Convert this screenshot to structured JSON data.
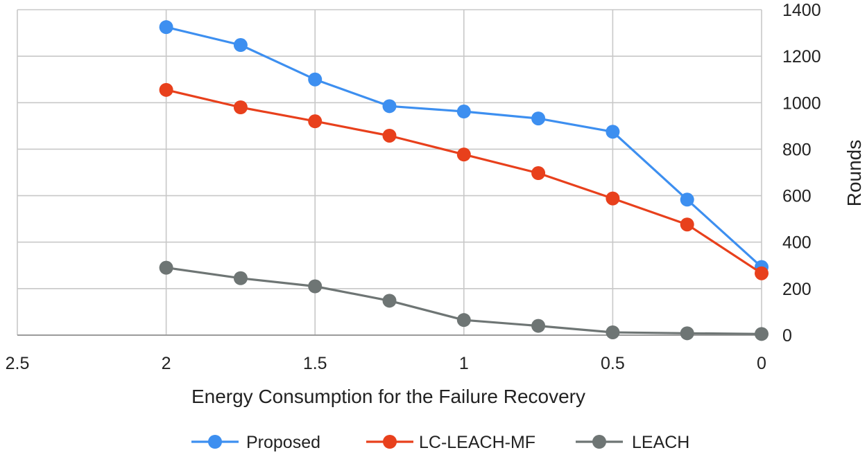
{
  "chart_data": {
    "type": "line",
    "xlabel": "Energy Consumption for the Failure Recovery",
    "ylabel": "Rounds",
    "x_reversed": true,
    "xlim": [
      2.5,
      0
    ],
    "ylim": [
      0,
      1400
    ],
    "x_ticks": [
      "2.5",
      "2",
      "1.5",
      "1",
      "0.5",
      "0"
    ],
    "y_ticks": [
      "0",
      "200",
      "400",
      "600",
      "800",
      "1000",
      "1200",
      "1400"
    ],
    "y_axis_side": "right",
    "grid": true,
    "legend_position": "bottom",
    "x": [
      2.0,
      1.75,
      1.5,
      1.25,
      1.0,
      0.75,
      0.5,
      0.25,
      0.0
    ],
    "series": [
      {
        "name": "Proposed",
        "color": "#3d8ff0",
        "values": [
          1325,
          1248,
          1100,
          985,
          962,
          932,
          875,
          583,
          293
        ]
      },
      {
        "name": "LC-LEACH-MF",
        "color": "#e8401c",
        "values": [
          1055,
          980,
          920,
          858,
          777,
          697,
          588,
          476,
          266
        ]
      },
      {
        "name": "LEACH",
        "color": "#6e7574",
        "values": [
          290,
          245,
          210,
          148,
          65,
          40,
          12,
          8,
          5
        ]
      }
    ]
  }
}
